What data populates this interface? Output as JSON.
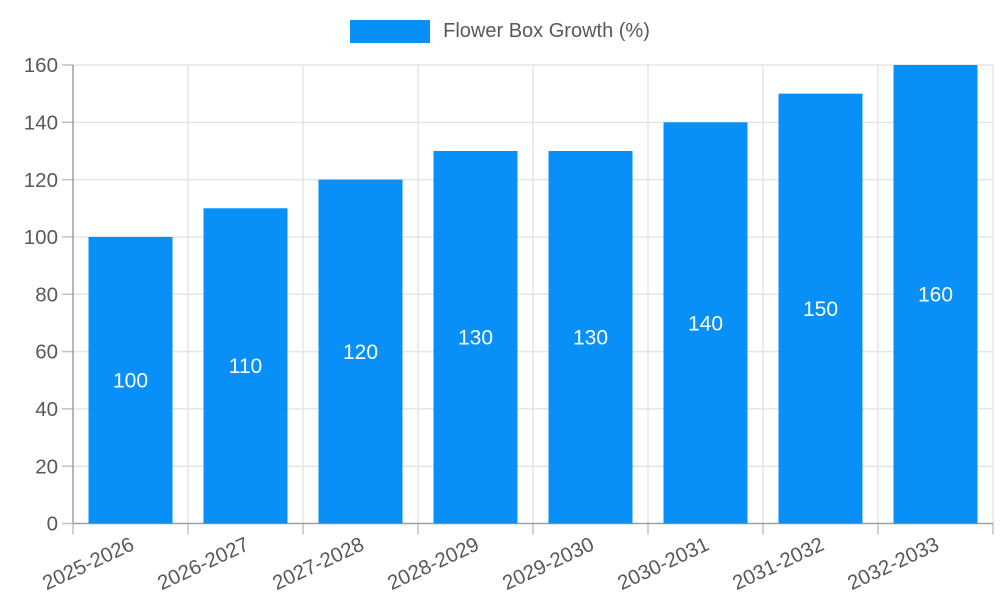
{
  "chart_data": {
    "type": "bar",
    "title": "Flower Box Growth (%)",
    "categories": [
      "2025-2026",
      "2026-2027",
      "2027-2028",
      "2028-2029",
      "2029-2030",
      "2030-2031",
      "2031-2032",
      "2032-2033"
    ],
    "values": [
      100,
      110,
      120,
      130,
      130,
      140,
      150,
      160
    ],
    "bar_value_labels": [
      "100",
      "110",
      "120",
      "130",
      "130",
      "140",
      "150",
      "160"
    ],
    "xlabel": "",
    "ylabel": "",
    "ylim": [
      0,
      160
    ],
    "ytick_step": 20,
    "ytick_labels": [
      "0",
      "20",
      "40",
      "60",
      "80",
      "100",
      "120",
      "140",
      "160"
    ],
    "grid": true,
    "legend_position": "top",
    "x_label_rotation_deg": -25,
    "colors": {
      "bar": "#0890f8",
      "bar_label_text": "#ffffff",
      "axis_line": "#9f9f9f",
      "grid_line": "#e5e5e5",
      "tick_mark": "#c2c2c2",
      "axis_text": "#58595b",
      "legend_text": "#58595b",
      "background": "#ffffff"
    }
  }
}
